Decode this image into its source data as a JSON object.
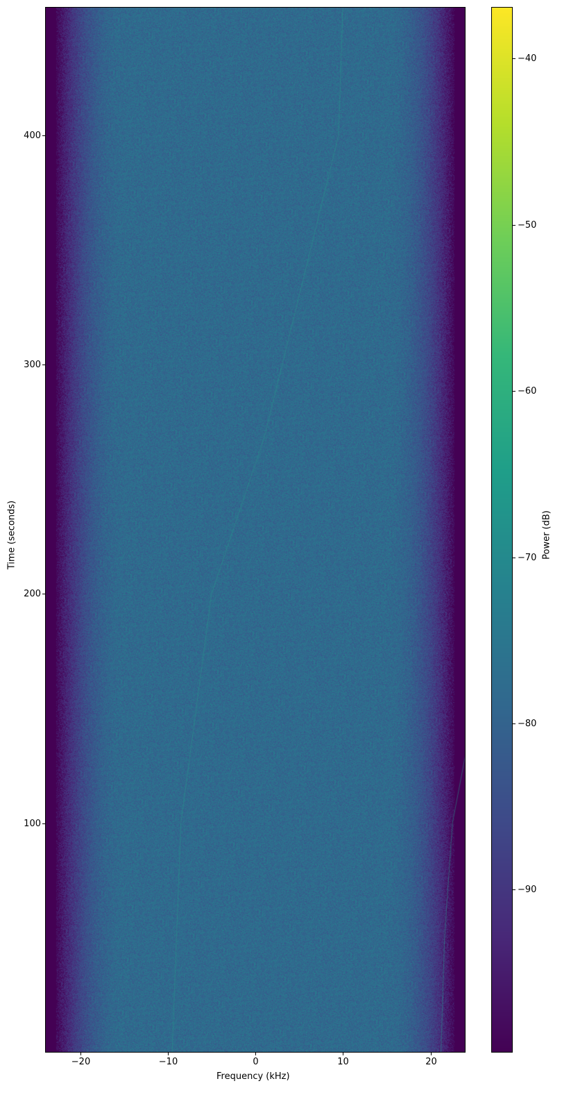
{
  "chart_data": {
    "type": "heatmap",
    "title": "",
    "xlabel": "Frequency (kHz)",
    "ylabel": "Time (seconds)",
    "xlim": [
      -24,
      24
    ],
    "ylim": [
      0,
      456
    ],
    "xticks": [
      -20,
      -10,
      0,
      10,
      20
    ],
    "xtick_labels": [
      "−20",
      "−10",
      "0",
      "10",
      "20"
    ],
    "yticks": [
      100,
      200,
      300,
      400
    ],
    "ytick_labels": [
      "100",
      "200",
      "300",
      "400"
    ],
    "colormap": "viridis",
    "colorbar": {
      "label": "Power (dB)",
      "range": [
        -99.8,
        -36.9
      ],
      "ticks": [
        -40,
        -50,
        -60,
        -70,
        -80,
        -90
      ],
      "tick_labels": [
        "−40",
        "−50",
        "−60",
        "−70",
        "−80",
        "−90"
      ]
    },
    "noise_floor_db": -78,
    "band_edge_rolloff_khz": [
      -22,
      22
    ],
    "features": [
      {
        "kind": "faint chirp",
        "points": [
          [
            -9.5,
            0
          ],
          [
            -8.5,
            100
          ],
          [
            -5,
            200
          ],
          [
            1,
            268
          ],
          [
            5,
            330
          ],
          [
            9.5,
            400
          ],
          [
            10,
            456
          ]
        ]
      },
      {
        "kind": "faint line",
        "points": [
          [
            21.2,
            0
          ],
          [
            21.6,
            50
          ],
          [
            22.5,
            100
          ],
          [
            24,
            130
          ]
        ]
      }
    ],
    "grid": false
  }
}
